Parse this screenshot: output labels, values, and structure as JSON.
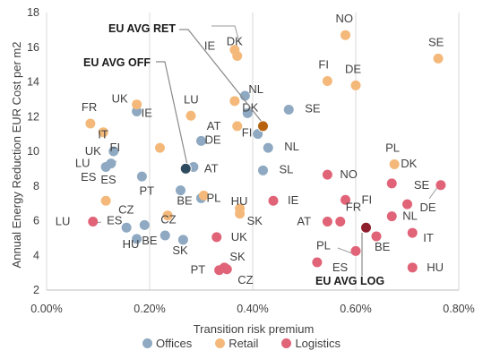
{
  "chart_data": {
    "type": "scatter",
    "xlabel": "Transition risk premium",
    "ylabel": "Annual  Energy Reduction EUR Cost per m2",
    "xlim": [
      0,
      0.8
    ],
    "ylim": [
      2,
      18
    ],
    "x_ticks": [
      "0.00%",
      "0.20%",
      "0.40%",
      "0.60%",
      "0.80%"
    ],
    "y_ticks": [
      "2",
      "4",
      "6",
      "8",
      "10",
      "12",
      "14",
      "16",
      "18"
    ],
    "grid": "vertical",
    "legend_position": "bottom",
    "series": [
      {
        "name": "Offices",
        "color": "#8EA9C1",
        "points": [
          {
            "x": 0.385,
            "y": 13.2,
            "label": "NL"
          },
          {
            "x": 0.47,
            "y": 12.4,
            "label": "SE"
          },
          {
            "x": 0.175,
            "y": 12.3,
            "label": "IE"
          },
          {
            "x": 0.39,
            "y": 12.2,
            "label": "DK"
          },
          {
            "x": 0.3,
            "y": 10.6,
            "label": "DE"
          },
          {
            "x": 0.41,
            "y": 11.0,
            "label": "FI"
          },
          {
            "x": 0.43,
            "y": 10.2,
            "label": "NL"
          },
          {
            "x": 0.13,
            "y": 10.0,
            "label": "UK"
          },
          {
            "x": 0.125,
            "y": 9.3,
            "label": "LU"
          },
          {
            "x": 0.115,
            "y": 9.1,
            "label": ""
          },
          {
            "x": 0.285,
            "y": 9.1,
            "label": "AT"
          },
          {
            "x": 0.42,
            "y": 8.9,
            "label": "SL"
          },
          {
            "x": 0.185,
            "y": 8.55,
            "label": "ES"
          },
          {
            "x": 0.26,
            "y": 7.75,
            "label": "PT"
          },
          {
            "x": 0.3,
            "y": 7.3,
            "label": "PL"
          },
          {
            "x": 0.23,
            "y": 5.15,
            "label": "BE"
          },
          {
            "x": 0.155,
            "y": 5.6,
            "label": "ES"
          },
          {
            "x": 0.19,
            "y": 5.75,
            "label": "CZ"
          },
          {
            "x": 0.175,
            "y": 4.95,
            "label": "HU"
          },
          {
            "x": 0.265,
            "y": 4.9,
            "label": "SK"
          }
        ]
      },
      {
        "name": "Retail",
        "color": "#F4B97A",
        "points": [
          {
            "x": 0.58,
            "y": 16.7,
            "label": "NO"
          },
          {
            "x": 0.76,
            "y": 15.35,
            "label": "SE"
          },
          {
            "x": 0.365,
            "y": 15.85,
            "label": "IE"
          },
          {
            "x": 0.37,
            "y": 15.5,
            "label": "DK"
          },
          {
            "x": 0.545,
            "y": 14.05,
            "label": "FI"
          },
          {
            "x": 0.6,
            "y": 13.8,
            "label": "DE"
          },
          {
            "x": 0.175,
            "y": 12.7,
            "label": "UK"
          },
          {
            "x": 0.28,
            "y": 12.05,
            "label": "LU"
          },
          {
            "x": 0.085,
            "y": 11.6,
            "label": "FR"
          },
          {
            "x": 0.11,
            "y": 11.1,
            "label": "IT"
          },
          {
            "x": 0.37,
            "y": 11.45,
            "label": "AT"
          },
          {
            "x": 0.365,
            "y": 12.9,
            "label": ""
          },
          {
            "x": 0.22,
            "y": 10.2,
            "label": "FI"
          },
          {
            "x": 0.675,
            "y": 9.25,
            "label": "PL"
          },
          {
            "x": 0.115,
            "y": 7.15,
            "label": "ES"
          },
          {
            "x": 0.305,
            "y": 7.45,
            "label": "BE"
          },
          {
            "x": 0.375,
            "y": 6.7,
            "label": "HU"
          },
          {
            "x": 0.375,
            "y": 6.4,
            "label": "SK"
          },
          {
            "x": 0.235,
            "y": 6.3,
            "label": "CZ"
          }
        ]
      },
      {
        "name": "Logistics",
        "color": "#E06377",
        "points": [
          {
            "x": 0.545,
            "y": 8.65,
            "label": "NO"
          },
          {
            "x": 0.67,
            "y": 8.15,
            "label": "DK"
          },
          {
            "x": 0.765,
            "y": 8.05,
            "label": "SE"
          },
          {
            "x": 0.44,
            "y": 7.15,
            "label": "IE"
          },
          {
            "x": 0.58,
            "y": 7.2,
            "label": "FI"
          },
          {
            "x": 0.7,
            "y": 6.95,
            "label": "DE"
          },
          {
            "x": 0.09,
            "y": 5.95,
            "label": "LU"
          },
          {
            "x": 0.545,
            "y": 5.95,
            "label": "AT"
          },
          {
            "x": 0.57,
            "y": 5.95,
            "label": "FR"
          },
          {
            "x": 0.67,
            "y": 6.25,
            "label": "NL"
          },
          {
            "x": 0.71,
            "y": 5.3,
            "label": "IT"
          },
          {
            "x": 0.64,
            "y": 5.1,
            "label": "BE"
          },
          {
            "x": 0.33,
            "y": 5.05,
            "label": "UK"
          },
          {
            "x": 0.6,
            "y": 4.25,
            "label": "PL"
          },
          {
            "x": 0.525,
            "y": 3.6,
            "label": "ES"
          },
          {
            "x": 0.71,
            "y": 3.3,
            "label": "HU"
          },
          {
            "x": 0.345,
            "y": 3.3,
            "label": "SK"
          },
          {
            "x": 0.35,
            "y": 3.2,
            "label": "CZ"
          },
          {
            "x": 0.335,
            "y": 3.15,
            "label": "PT"
          }
        ]
      }
    ],
    "averages": [
      {
        "label": "EU AVG RET",
        "x": 0.42,
        "y": 11.45,
        "color": "#B8620E"
      },
      {
        "label": "EU AVG OFF",
        "x": 0.27,
        "y": 9.0,
        "color": "#2E4A5E"
      },
      {
        "label": "EU AVG LOG",
        "x": 0.62,
        "y": 5.6,
        "color": "#8E1E2C"
      }
    ]
  }
}
